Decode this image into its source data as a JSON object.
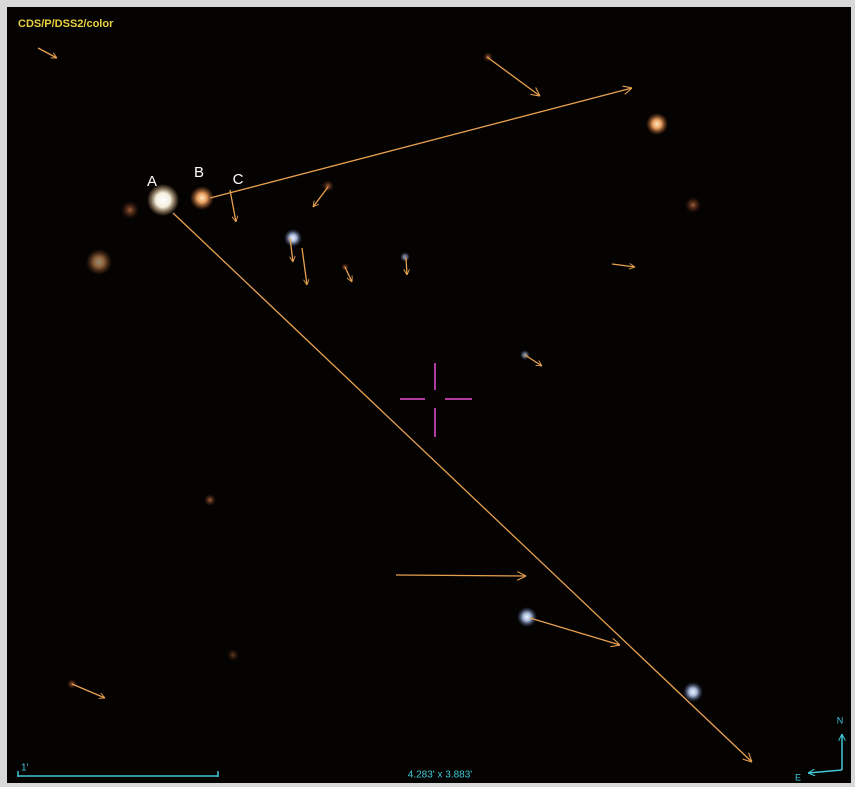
{
  "survey": "CDS/P/DSS2/color",
  "labels": [
    "A",
    "B",
    "C"
  ],
  "scale": "1'",
  "field_size": "4.283' x 3.883'",
  "compass": {
    "north": "N",
    "east": "E"
  }
}
